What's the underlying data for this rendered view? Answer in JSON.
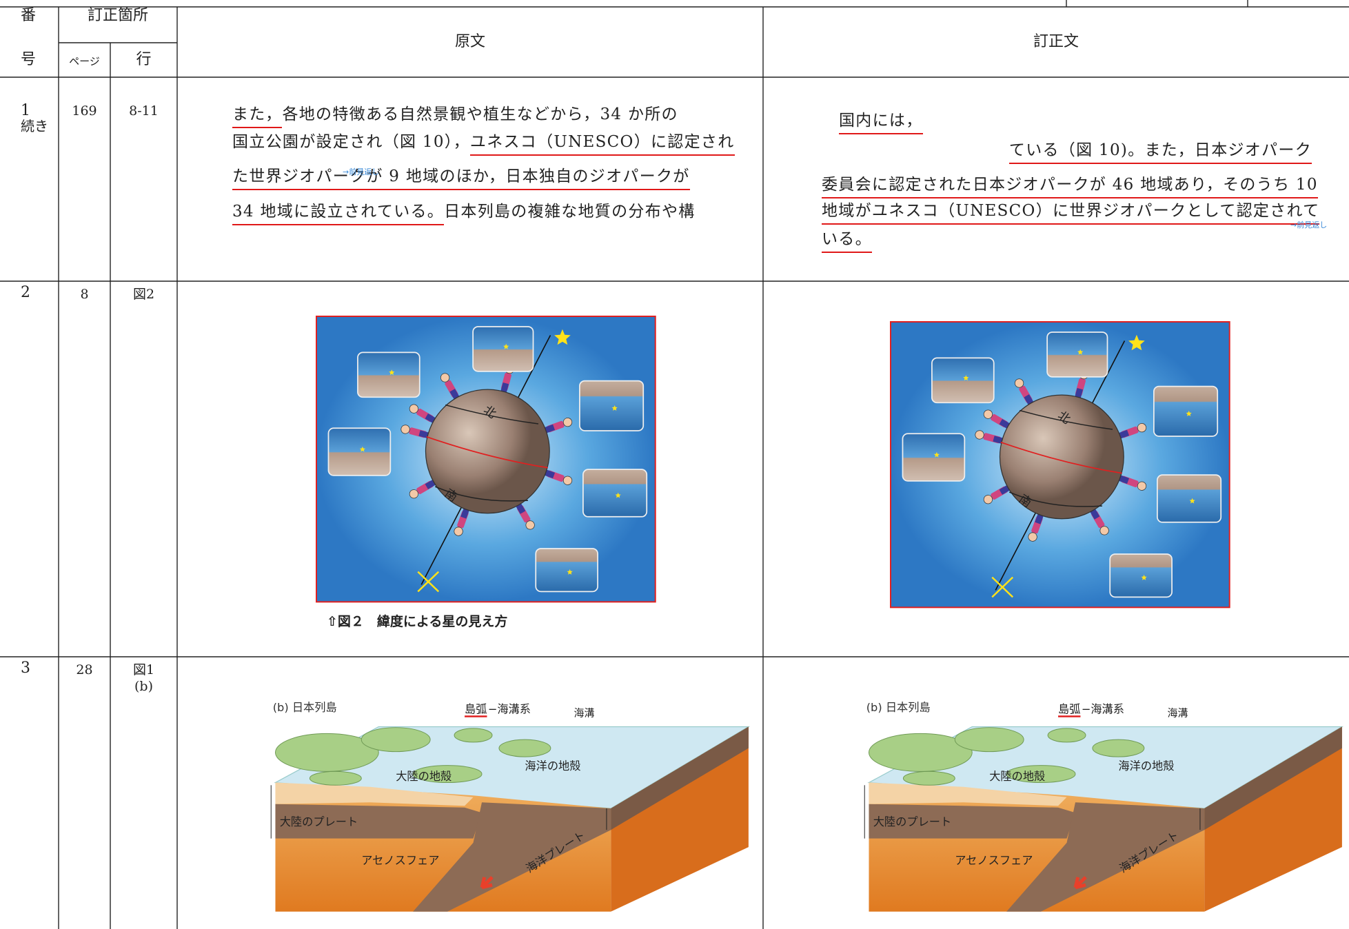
{
  "header": {
    "number": [
      "番",
      "号"
    ],
    "location": "訂正箇所",
    "page": "ページ",
    "line": "行",
    "original": "原文",
    "corrected": "訂正文"
  },
  "rows": [
    {
      "number": "1",
      "note": "続き",
      "page": "169",
      "line": "8-11",
      "original": {
        "lines": [
          [
            "また，",
            "各地の特徴ある自然景観や植生などから，34 か所の"
          ],
          [
            "国立公園が設定され（図 10），",
            "ユネスコ（UNESCO）に認定され"
          ],
          [
            "た世界ジオパークが 9 地域のほか，日本独自のジオパークが"
          ],
          [
            "34 地域に設立されている。",
            "日本列島の複雑な地質の分布や構"
          ]
        ],
        "annotation": "→前見返し"
      },
      "corrected": {
        "lines": [
          "国内には，",
          "ている（図 10)。また，日本ジオパーク",
          "委員会に認定された日本ジオパークが 46 地域あり，そのうち 10",
          "地域がユネスコ（UNESCO）に世界ジオパークとして認定されて",
          "いる。"
        ],
        "annotation": "→前見返し"
      }
    },
    {
      "number": "2",
      "page": "8",
      "line": "図2",
      "original": {
        "figure_labels": [
          "北",
          "南"
        ],
        "caption": "⇧図２　緯度による星の見え方"
      },
      "corrected": {
        "figure_labels": [
          "北",
          "南"
        ]
      }
    },
    {
      "number": "3",
      "page": "28",
      "line": [
        "図1",
        "(b)"
      ],
      "original": {
        "figure_labels": {
          "title": "(b) 日本列島",
          "system": [
            "島弧",
            "−海溝系"
          ],
          "trench": "海溝",
          "continental_crust": "大陸の地殻",
          "oceanic_crust": "海洋の地殻",
          "continental_plate": "大陸のプレート",
          "oceanic_plate": "海洋プレート",
          "asthenosphere": "アセノスフェア"
        }
      },
      "corrected": {
        "figure_labels": {
          "title": "(b) 日本列島",
          "system": [
            "島弧",
            "−海溝系"
          ],
          "trench": "海溝",
          "continental_crust": "大陸の地殻",
          "oceanic_crust": "海洋の地殻",
          "continental_plate": "大陸のプレート",
          "oceanic_plate": "海洋プレート",
          "asthenosphere": "アセノスフェア"
        }
      }
    }
  ]
}
